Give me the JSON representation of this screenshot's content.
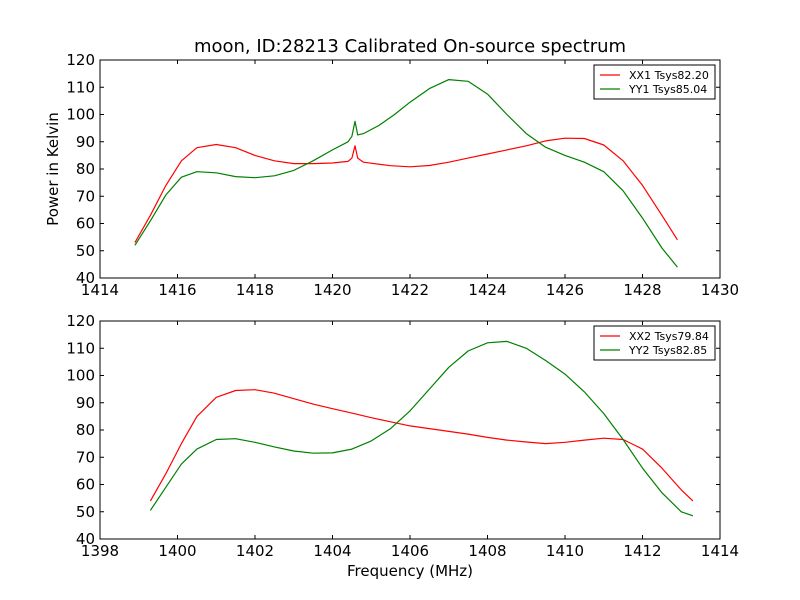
{
  "figure": {
    "title": "moon, ID:28213 Calibrated On-source spectrum"
  },
  "chart_data": [
    {
      "type": "line",
      "title": "moon, ID:28213 Calibrated On-source spectrum",
      "xlabel": "",
      "ylabel": "Power in Kelvin",
      "xlim": [
        1414,
        1430
      ],
      "ylim": [
        40,
        120
      ],
      "xticks": [
        1414,
        1416,
        1418,
        1420,
        1422,
        1424,
        1426,
        1428,
        1430
      ],
      "yticks": [
        40,
        50,
        60,
        70,
        80,
        90,
        100,
        110,
        120
      ],
      "grid": false,
      "legend_position": "top-right",
      "series": [
        {
          "name": "XX1 Tsys82.20",
          "color": "#ff0000",
          "x": [
            1414.9,
            1415.3,
            1415.7,
            1416.1,
            1416.5,
            1417.0,
            1417.5,
            1418.0,
            1418.5,
            1419.0,
            1419.5,
            1420.0,
            1420.4,
            1420.5,
            1420.58,
            1420.65,
            1420.8,
            1421.5,
            1422.0,
            1422.5,
            1423.0,
            1423.5,
            1424.0,
            1424.5,
            1425.0,
            1425.5,
            1426.0,
            1426.5,
            1427.0,
            1427.5,
            1428.0,
            1428.5,
            1428.9
          ],
          "y": [
            53.0,
            63.0,
            74.0,
            83.0,
            87.8,
            89.0,
            87.8,
            85.0,
            83.0,
            82.0,
            82.0,
            82.2,
            82.8,
            84.0,
            88.5,
            84.0,
            82.5,
            81.2,
            80.8,
            81.3,
            82.5,
            84.0,
            85.5,
            87.0,
            88.5,
            90.3,
            91.3,
            91.2,
            88.8,
            83.0,
            74.0,
            63.0,
            54.0
          ]
        },
        {
          "name": "YY1 Tsys85.04",
          "color": "#008000",
          "x": [
            1414.9,
            1415.3,
            1415.7,
            1416.1,
            1416.5,
            1417.0,
            1417.5,
            1418.0,
            1418.5,
            1419.0,
            1419.5,
            1420.0,
            1420.4,
            1420.5,
            1420.58,
            1420.65,
            1420.8,
            1421.2,
            1421.6,
            1422.0,
            1422.5,
            1423.0,
            1423.5,
            1424.0,
            1424.5,
            1425.0,
            1425.5,
            1426.0,
            1426.5,
            1427.0,
            1427.5,
            1428.0,
            1428.5,
            1428.9
          ],
          "y": [
            52.0,
            61.0,
            70.5,
            77.0,
            79.0,
            78.6,
            77.2,
            76.8,
            77.5,
            79.5,
            83.0,
            87.0,
            90.0,
            92.0,
            97.5,
            92.5,
            93.0,
            96.0,
            100.0,
            104.5,
            109.5,
            112.8,
            112.2,
            107.5,
            100.0,
            93.0,
            88.0,
            85.0,
            82.5,
            79.0,
            72.0,
            62.0,
            51.0,
            44.0
          ]
        }
      ]
    },
    {
      "type": "line",
      "title": "",
      "xlabel": "Frequency (MHz)",
      "ylabel": "",
      "xlim": [
        1398,
        1414
      ],
      "ylim": [
        40,
        120
      ],
      "xticks": [
        1398,
        1400,
        1402,
        1404,
        1406,
        1408,
        1410,
        1412,
        1414
      ],
      "yticks": [
        40,
        50,
        60,
        70,
        80,
        90,
        100,
        110,
        120
      ],
      "grid": false,
      "legend_position": "top-right",
      "series": [
        {
          "name": "XX2 Tsys79.84",
          "color": "#ff0000",
          "x": [
            1399.3,
            1399.7,
            1400.1,
            1400.5,
            1401.0,
            1401.5,
            1402.0,
            1402.5,
            1403.0,
            1403.5,
            1404.0,
            1404.5,
            1405.0,
            1405.5,
            1406.0,
            1406.5,
            1407.0,
            1407.5,
            1408.0,
            1408.5,
            1409.0,
            1409.5,
            1410.0,
            1410.5,
            1411.0,
            1411.5,
            1412.0,
            1412.5,
            1413.0,
            1413.3
          ],
          "y": [
            54.0,
            64.0,
            75.0,
            85.0,
            92.0,
            94.5,
            94.8,
            93.5,
            91.5,
            89.5,
            87.8,
            86.2,
            84.5,
            83.0,
            81.5,
            80.5,
            79.5,
            78.5,
            77.3,
            76.3,
            75.6,
            75.0,
            75.5,
            76.3,
            77.0,
            76.5,
            73.0,
            66.0,
            58.0,
            54.0
          ]
        },
        {
          "name": "YY2 Tsys82.85",
          "color": "#008000",
          "x": [
            1399.3,
            1399.7,
            1400.1,
            1400.5,
            1401.0,
            1401.5,
            1402.0,
            1402.5,
            1403.0,
            1403.5,
            1404.0,
            1404.5,
            1405.0,
            1405.5,
            1406.0,
            1406.5,
            1407.0,
            1407.5,
            1408.0,
            1408.5,
            1409.0,
            1409.5,
            1410.0,
            1410.5,
            1411.0,
            1411.5,
            1412.0,
            1412.5,
            1413.0,
            1413.3
          ],
          "y": [
            50.5,
            59.0,
            67.5,
            73.0,
            76.5,
            76.8,
            75.5,
            73.8,
            72.3,
            71.5,
            71.6,
            73.0,
            76.0,
            80.5,
            87.0,
            95.0,
            103.0,
            109.0,
            112.0,
            112.5,
            110.0,
            105.5,
            100.5,
            94.0,
            86.0,
            76.5,
            66.0,
            57.0,
            50.0,
            48.5
          ]
        }
      ]
    }
  ]
}
